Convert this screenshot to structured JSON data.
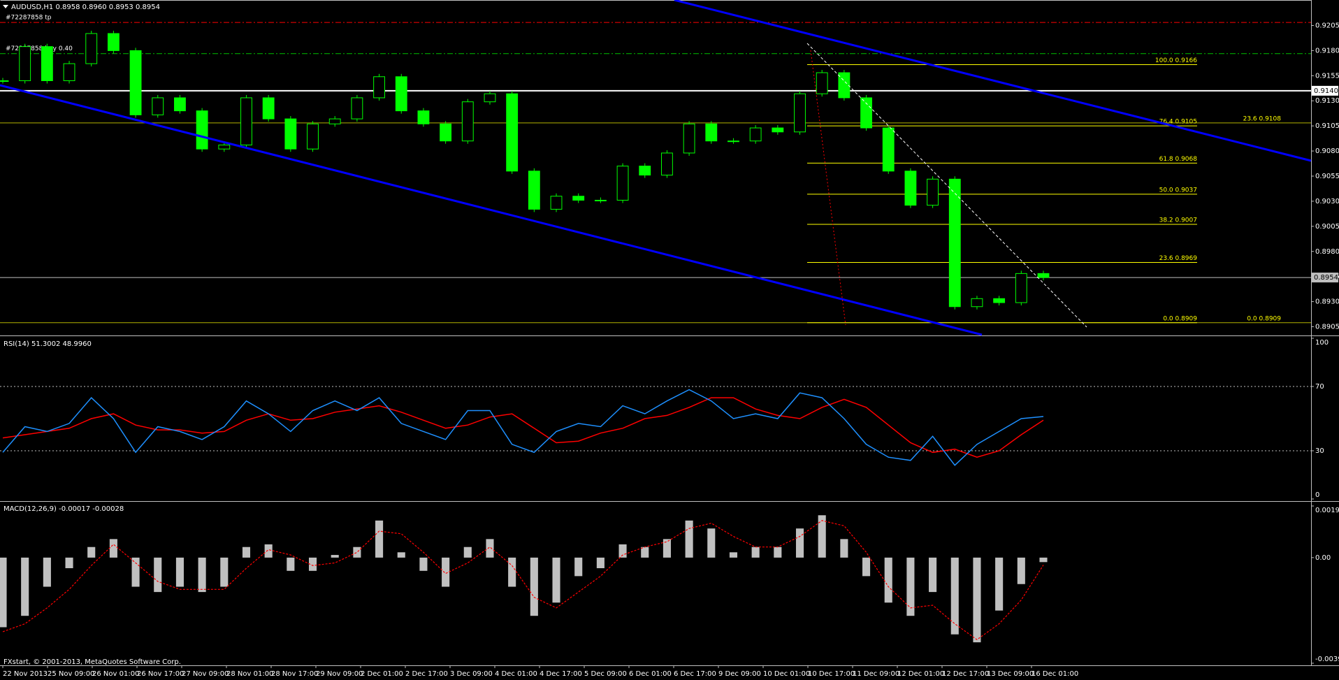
{
  "chart_data": [
    {
      "type": "candlestick",
      "title": "AUDUSD,H1  0.8958 0.8960 0.8953 0.8954",
      "color": "#00ff00",
      "values": [
        0.915,
        0.9184,
        0.915,
        0.9167,
        0.9197,
        0.918,
        0.9116,
        0.9133,
        0.912,
        0.9082,
        0.9086,
        0.9133,
        0.9112,
        0.9082,
        0.9107,
        0.9112,
        0.9133,
        0.9154,
        0.912,
        0.9107,
        0.909,
        0.9129,
        0.9137,
        0.906,
        0.9022,
        0.9035,
        0.9031,
        0.9031,
        0.9065,
        0.9056,
        0.9078,
        0.9107,
        0.909,
        0.909,
        0.9103,
        0.9099,
        0.9137,
        0.9158,
        0.9133,
        0.9103,
        0.906,
        0.9026,
        0.9052,
        0.8925,
        0.8933,
        0.8929,
        0.8958,
        0.8954
      ],
      "ylim": [
        0.8897,
        0.9229
      ],
      "yticks": [
        0.8905,
        {
          "value": 0.893,
          "label": "0.8930"
        },
        0.8955,
        {
          "value": 0.898,
          "label": "0.8980"
        },
        0.9005,
        {
          "value": 0.903,
          "label": "0.9030"
        },
        0.9055,
        {
          "value": 0.908,
          "label": "0.9080"
        },
        0.9105,
        {
          "value": 0.913,
          "label": "0.9130"
        },
        0.9155,
        {
          "value": 0.918,
          "label": "0.9180"
        },
        0.9205
      ],
      "orders": [
        {
          "label": "#72287858 tp",
          "value": 0.9208,
          "color": "#ff0000"
        },
        {
          "label": "#72287858 buy 0.40",
          "value": 0.9177,
          "color": "#00c000"
        }
      ],
      "price_marks": [
        {
          "value": 0.914,
          "label": "0.9140",
          "color": "#ffffff"
        },
        {
          "value": 0.8954,
          "label": "0.8954",
          "color": "#c0c0c0"
        }
      ],
      "fibonacci": [
        {
          "value": 0.9166,
          "label": "100.0  0.9166"
        },
        {
          "value": 0.9105,
          "label": "76.4  0.9105"
        },
        {
          "value": 0.9068,
          "label": "61.8  0.9068"
        },
        {
          "value": 0.9037,
          "label": "50.0  0.9037"
        },
        {
          "value": 0.9007,
          "label": "38.2  0.9007"
        },
        {
          "value": 0.8969,
          "label": "23.6  0.8969"
        },
        {
          "value": 0.8909,
          "label": "0.0  0.8909"
        }
      ],
      "fibonacci_2": [
        {
          "value": 0.9108,
          "label": "23.6  0.9108"
        },
        {
          "value": 0.8909,
          "label": "0.0  0.8909"
        }
      ],
      "fib_color": "#ffff00"
    },
    {
      "type": "line",
      "title": "RSI(14) 51.3002 48.9960",
      "color": "#1e90ff",
      "signal_color": "#ff0000",
      "values": [
        29,
        45,
        42,
        47,
        63,
        50,
        29,
        45,
        42,
        37,
        45,
        61,
        53,
        42,
        55,
        61,
        55,
        63,
        47,
        42,
        37,
        55,
        55,
        34,
        29,
        42,
        47,
        45,
        58,
        53,
        61,
        68,
        61,
        50,
        53,
        50,
        66,
        63,
        50,
        34,
        26,
        24,
        39,
        21,
        34,
        42,
        50,
        51.3002
      ],
      "signal": [
        38,
        40,
        42,
        44,
        50,
        53,
        46,
        43,
        43,
        41,
        42,
        49,
        53,
        49,
        50,
        54,
        56,
        58,
        54,
        49,
        44,
        46,
        51,
        53,
        44,
        35,
        36,
        41,
        44,
        50,
        52,
        57,
        63,
        63,
        56,
        52,
        50,
        57,
        62,
        57,
        46,
        35,
        29,
        31,
        26,
        30,
        40,
        48.996
      ],
      "ylim": [
        0,
        100
      ],
      "yticks": [
        0,
        30,
        70,
        100
      ]
    },
    {
      "type": "histogram",
      "title": "MACD(12,26,9) -0.00017 -0.00028",
      "color": "#c0c0c0",
      "signal_color": "#ff0000",
      "values": [
        -0.00263,
        -0.0022,
        -0.0011,
        -0.0004,
        0.0004,
        0.0007,
        -0.0011,
        -0.0013,
        -0.0011,
        -0.0013,
        -0.0011,
        0.0004,
        0.0005,
        -0.0005,
        -0.0005,
        0.0001,
        0.0004,
        0.0014,
        0.0002,
        -0.0005,
        -0.0011,
        0.0004,
        0.0007,
        -0.0011,
        -0.0022,
        -0.0017,
        -0.0007,
        -0.0004,
        0.0005,
        0.0004,
        0.0007,
        0.0014,
        0.0011,
        0.0002,
        0.0004,
        0.0004,
        0.0011,
        0.0016,
        0.0007,
        -0.0007,
        -0.0017,
        -0.0022,
        -0.0013,
        -0.0029,
        -0.0032,
        -0.002,
        -0.001,
        -0.00017
      ],
      "signal": [
        -0.0028,
        -0.0025,
        -0.0019,
        -0.0012,
        -0.0003,
        0.0005,
        -0.0002,
        -0.0009,
        -0.0012,
        -0.0012,
        -0.0012,
        -0.0004,
        0.0003,
        0.0001,
        -0.0003,
        -0.0002,
        0.0002,
        0.001,
        0.0009,
        0.0002,
        -0.0006,
        -0.0002,
        0.0004,
        -0.0003,
        -0.0015,
        -0.0019,
        -0.0013,
        -0.0007,
        0.0001,
        0.0004,
        0.0006,
        0.0011,
        0.0013,
        0.0008,
        0.0004,
        0.0004,
        0.0008,
        0.0014,
        0.0012,
        0.0002,
        -0.0011,
        -0.0019,
        -0.0018,
        -0.0025,
        -0.0031,
        -0.0025,
        -0.0016,
        -0.00028
      ],
      "ylim": [
        -0.00399,
        0.00195
      ],
      "yticks": [
        -0.00399,
        {
          "value": 0,
          "label": "0.00"
        },
        0.00195
      ]
    }
  ],
  "time_axis": [
    "22 Nov 2013",
    "25 Nov 09:00",
    "26 Nov 01:00",
    "26 Nov 17:00",
    "27 Nov 09:00",
    "28 Nov 01:00",
    "28 Nov 17:00",
    "29 Nov 09:00",
    "2 Dec 01:00",
    "2 Dec 17:00",
    "3 Dec 09:00",
    "4 Dec 01:00",
    "4 Dec 17:00",
    "5 Dec 09:00",
    "6 Dec 01:00",
    "6 Dec 17:00",
    "9 Dec 09:00",
    "10 Dec 01:00",
    "10 Dec 17:00",
    "11 Dec 09:00",
    "12 Dec 01:00",
    "12 Dec 17:00",
    "13 Dec 09:00",
    "16 Dec 01:00"
  ],
  "footer": "FXstart, © 2001-2013, MetaQuotes Software Corp."
}
